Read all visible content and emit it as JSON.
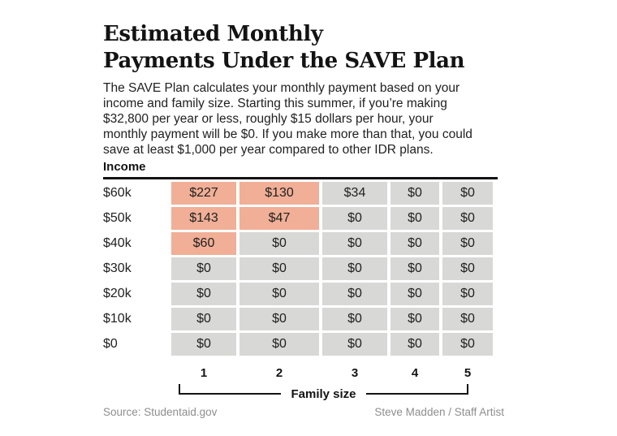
{
  "header": {
    "title_line1": "Estimated Monthly",
    "title_line2": "Payments Under the SAVE Plan",
    "description_lines": [
      "The SAVE Plan calculates your monthly payment based on your",
      "income and family size. Starting this summer, if you’re making",
      "$32,800 per year or less, roughly $15 dollars per hour, your",
      "monthly payment will be $0. If you make more than that, you could",
      "save at least $1,000 per year compared to other IDR plans."
    ]
  },
  "table": {
    "income_label": "Income",
    "rows": [
      {
        "income": "$60k",
        "cells": [
          {
            "text": "$227",
            "style": "highlight"
          },
          {
            "text": "$130",
            "style": "highlight"
          },
          {
            "text": "$34",
            "style": "default"
          },
          {
            "text": "$0",
            "style": "default"
          },
          {
            "text": "$0",
            "style": "default"
          }
        ]
      },
      {
        "income": "$50k",
        "cells": [
          {
            "text": "$143",
            "style": "highlight"
          },
          {
            "text": "$47",
            "style": "highlight"
          },
          {
            "text": "$0",
            "style": "default"
          },
          {
            "text": "$0",
            "style": "default"
          },
          {
            "text": "$0",
            "style": "default"
          }
        ]
      },
      {
        "income": "$40k",
        "cells": [
          {
            "text": "$60",
            "style": "highlight"
          },
          {
            "text": "$0",
            "style": "default"
          },
          {
            "text": "$0",
            "style": "default"
          },
          {
            "text": "$0",
            "style": "default"
          },
          {
            "text": "$0",
            "style": "default"
          }
        ]
      },
      {
        "income": "$30k",
        "cells": [
          {
            "text": "$0",
            "style": "default"
          },
          {
            "text": "$0",
            "style": "default"
          },
          {
            "text": "$0",
            "style": "default"
          },
          {
            "text": "$0",
            "style": "default"
          },
          {
            "text": "$0",
            "style": "default"
          }
        ]
      },
      {
        "income": "$20k",
        "cells": [
          {
            "text": "$0",
            "style": "default"
          },
          {
            "text": "$0",
            "style": "default"
          },
          {
            "text": "$0",
            "style": "default"
          },
          {
            "text": "$0",
            "style": "default"
          },
          {
            "text": "$0",
            "style": "default"
          }
        ]
      },
      {
        "income": "$10k",
        "cells": [
          {
            "text": "$0",
            "style": "default"
          },
          {
            "text": "$0",
            "style": "default"
          },
          {
            "text": "$0",
            "style": "default"
          },
          {
            "text": "$0",
            "style": "default"
          },
          {
            "text": "$0",
            "style": "default"
          }
        ]
      },
      {
        "income": "$0",
        "cells": [
          {
            "text": "$0",
            "style": "default"
          },
          {
            "text": "$0",
            "style": "default"
          },
          {
            "text": "$0",
            "style": "default"
          },
          {
            "text": "$0",
            "style": "default"
          },
          {
            "text": "$0",
            "style": "default"
          }
        ]
      }
    ]
  },
  "axis": {
    "ticks": [
      "1",
      "2",
      "3",
      "4",
      "5"
    ],
    "label": "Family size"
  },
  "footer": {
    "source": "Source: Studentaid.gov",
    "credit": "Steve Madden / Staff Artist"
  },
  "colors": {
    "highlight": "#f0af96",
    "cell_base": "#d8d8d6",
    "text": "#1f1f1f",
    "muted": "#8e8e8e"
  },
  "chart_data": {
    "type": "heatmap",
    "title": "Estimated Monthly Payments Under the SAVE Plan",
    "xlabel": "Family size",
    "ylabel": "Income",
    "x_categories": [
      1,
      2,
      3,
      4,
      5
    ],
    "y_categories": [
      "$60k",
      "$50k",
      "$40k",
      "$30k",
      "$20k",
      "$10k",
      "$0"
    ],
    "values": [
      [
        227,
        130,
        34,
        0,
        0
      ],
      [
        143,
        47,
        0,
        0,
        0
      ],
      [
        60,
        0,
        0,
        0,
        0
      ],
      [
        0,
        0,
        0,
        0,
        0
      ],
      [
        0,
        0,
        0,
        0,
        0
      ],
      [
        0,
        0,
        0,
        0,
        0
      ],
      [
        0,
        0,
        0,
        0,
        0
      ]
    ],
    "highlighted": [
      [
        true,
        true,
        false,
        false,
        false
      ],
      [
        true,
        true,
        false,
        false,
        false
      ],
      [
        true,
        false,
        false,
        false,
        false
      ],
      [
        false,
        false,
        false,
        false,
        false
      ],
      [
        false,
        false,
        false,
        false,
        false
      ],
      [
        false,
        false,
        false,
        false,
        false
      ],
      [
        false,
        false,
        false,
        false,
        false
      ]
    ],
    "highlight_color": "#f0af96",
    "base_color": "#d8d8d6",
    "legend_position": "none",
    "grid": false
  }
}
